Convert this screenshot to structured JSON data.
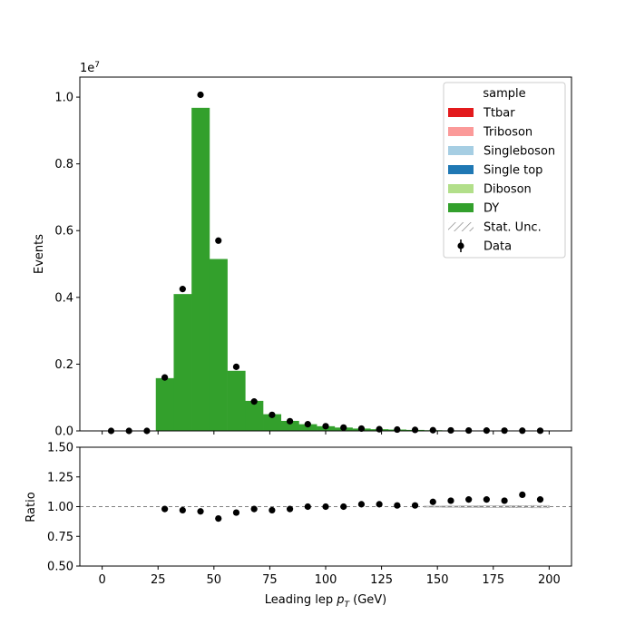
{
  "chart_data": {
    "type": "bar",
    "stacked": true,
    "xlabel_main": "Leading lep ",
    "xlabel_sym": "p",
    "xlabel_sub": "T",
    "xlabel_unit": " (GeV)",
    "ylabel": "Events",
    "ylabel_ratio": "Ratio",
    "y_exponent_base": "1e",
    "y_exponent_power": "7",
    "xlim": [
      -10,
      210
    ],
    "ylim": [
      0,
      1.06
    ],
    "ylim_ratio": [
      0.5,
      1.5
    ],
    "x_ticks": [
      0,
      25,
      50,
      75,
      100,
      125,
      150,
      175,
      200
    ],
    "x_tick_labels": [
      "0",
      "25",
      "50",
      "75",
      "100",
      "125",
      "150",
      "175",
      "200"
    ],
    "y_ticks": [
      0.0,
      0.2,
      0.4,
      0.6,
      0.8,
      1.0
    ],
    "y_tick_labels": [
      "0.0",
      "0.2",
      "0.4",
      "0.6",
      "0.8",
      "1.0"
    ],
    "ratio_ticks": [
      0.5,
      0.75,
      1.0,
      1.25,
      1.5
    ],
    "ratio_tick_labels": [
      "0.50",
      "0.75",
      "1.00",
      "1.25",
      "1.50"
    ],
    "bin_edges": [
      0,
      8,
      16,
      24,
      32,
      40,
      48,
      56,
      64,
      72,
      80,
      88,
      96,
      104,
      112,
      120,
      128,
      136,
      144,
      152,
      160,
      168,
      176,
      184,
      192,
      200
    ],
    "mc_total": [
      0,
      0,
      0,
      0.158,
      0.41,
      0.968,
      0.515,
      0.18,
      0.09,
      0.05,
      0.03,
      0.02,
      0.014,
      0.01,
      0.007,
      0.005,
      0.004,
      0.003,
      0.002,
      0.0015,
      0.0012,
      0.001,
      0.0008,
      0.0006,
      0.0005
    ],
    "data_x": [
      4,
      12,
      20,
      28,
      36,
      44,
      52,
      60,
      68,
      76,
      84,
      92,
      100,
      108,
      116,
      124,
      132,
      140,
      148,
      156,
      164,
      172,
      180,
      188,
      196
    ],
    "data_y": [
      0,
      0,
      0,
      0.16,
      0.425,
      1.007,
      0.57,
      0.192,
      0.088,
      0.048,
      0.029,
      0.02,
      0.014,
      0.01,
      0.007,
      0.005,
      0.004,
      0.003,
      0.002,
      0.0015,
      0.0012,
      0.001,
      0.0008,
      0.0006,
      0.0005
    ],
    "ratio_x": [
      28,
      36,
      44,
      52,
      60,
      68,
      76,
      84,
      92,
      100,
      108,
      116,
      124,
      132,
      140,
      148,
      156,
      164,
      172,
      180,
      188,
      196
    ],
    "ratio_y": [
      0.98,
      0.97,
      0.96,
      0.9,
      0.95,
      0.98,
      0.97,
      0.98,
      1.0,
      1.0,
      1.0,
      1.02,
      1.02,
      1.01,
      1.01,
      1.04,
      1.05,
      1.06,
      1.06,
      1.05,
      1.1,
      1.06
    ],
    "ratio_reference": 1.0,
    "legend": {
      "title": "sample",
      "placement": "top-right",
      "entries": [
        {
          "label": "Ttbar",
          "color": "#e31a1c",
          "kind": "patch"
        },
        {
          "label": "Triboson",
          "color": "#fb9a99",
          "kind": "patch"
        },
        {
          "label": "Singleboson",
          "color": "#a6cee3",
          "kind": "patch"
        },
        {
          "label": "Single top",
          "color": "#1f78b4",
          "kind": "patch"
        },
        {
          "label": "Diboson",
          "color": "#b2df8a",
          "kind": "patch"
        },
        {
          "label": "DY",
          "color": "#33a02c",
          "kind": "patch"
        },
        {
          "label": "Stat. Unc.",
          "color": "#888888",
          "kind": "hatch"
        },
        {
          "label": "Data",
          "color": "#000000",
          "kind": "marker"
        }
      ]
    },
    "colors": {
      "dy": "#33a02c",
      "data": "#000000",
      "reference_line": "#808080"
    },
    "grid": false
  }
}
